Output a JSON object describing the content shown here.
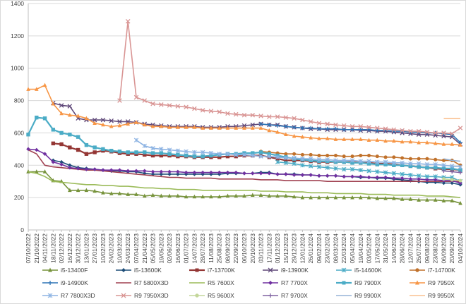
{
  "chart_data": {
    "type": "line",
    "title": "",
    "xlabel": "",
    "ylabel": "",
    "ylim": [
      0,
      1400
    ],
    "yticks": [
      0,
      200,
      400,
      600,
      800,
      1000,
      1200,
      1400
    ],
    "grid": "horizontal",
    "legend_position": "bottom",
    "x_labels": [
      "07/10/2022",
      "21/10/2022",
      "04/11/2022",
      "18/11/2022",
      "02/12/2022",
      "16/12/2022",
      "30/12/2022",
      "13/01/2023",
      "27/01/2023",
      "10/02/2023",
      "24/02/2023",
      "10/03/2023",
      "24/03/2023",
      "07/04/2023",
      "21/04/2023",
      "05/05/2023",
      "19/05/2023",
      "02/06/2023",
      "16/06/2023",
      "01/07/2023",
      "14/07/2023",
      "28/07/2023",
      "11/08/2023",
      "25/08/2023",
      "08/09/2023",
      "22/09/2023",
      "06/10/2023",
      "20/10/2023",
      "03/11/2023",
      "17/11/2023",
      "01/12/2023",
      "15/12/2023",
      "29/12/2023",
      "12/01/2024",
      "26/01/2024",
      "09/02/2024",
      "23/02/2024",
      "08/03/2024",
      "22/03/2024",
      "05/04/2024",
      "19/04/2024",
      "03/05/2024",
      "17/05/2024",
      "31/05/2024",
      "14/06/2024",
      "28/06/2024",
      "12/07/2024",
      "26/07/2024",
      "09/08/2024",
      "23/08/2024",
      "06/09/2024",
      "20/09/2024",
      "04/10/2024"
    ],
    "series": [
      {
        "name": "i5-13400F",
        "color": "#77933C",
        "marker": "triangle",
        "values": [
          360,
          360,
          360,
          305,
          300,
          245,
          245,
          245,
          240,
          230,
          225,
          225,
          220,
          220,
          210,
          215,
          210,
          210,
          210,
          205,
          205,
          205,
          205,
          205,
          210,
          210,
          210,
          215,
          215,
          210,
          210,
          210,
          205,
          200,
          200,
          200,
          200,
          200,
          200,
          200,
          200,
          200,
          195,
          195,
          195,
          190,
          190,
          185,
          185,
          185,
          180,
          180,
          165
        ]
      },
      {
        "name": "i5-13600K",
        "color": "#1F4E79",
        "marker": "diamond",
        "values": [
          null,
          null,
          null,
          430,
          420,
          400,
          385,
          380,
          375,
          370,
          365,
          365,
          360,
          360,
          350,
          345,
          345,
          345,
          345,
          345,
          345,
          345,
          345,
          345,
          350,
          350,
          350,
          350,
          355,
          355,
          345,
          345,
          345,
          340,
          340,
          335,
          335,
          335,
          330,
          330,
          325,
          325,
          320,
          320,
          315,
          310,
          305,
          300,
          295,
          295,
          290,
          290,
          280
        ]
      },
      {
        "name": "i7-13700K",
        "color": "#943634",
        "marker": "square",
        "values": [
          null,
          null,
          null,
          535,
          530,
          510,
          495,
          470,
          480,
          490,
          485,
          475,
          470,
          470,
          465,
          460,
          460,
          460,
          455,
          455,
          450,
          450,
          450,
          450,
          455,
          455,
          460,
          460,
          460,
          450,
          440,
          430,
          430,
          430,
          425,
          420,
          420,
          420,
          420,
          420,
          415,
          415,
          410,
          410,
          405,
          400,
          395,
          390,
          385,
          380,
          375,
          375,
          370
        ]
      },
      {
        "name": "i9-13900K",
        "color": "#60497A",
        "marker": "cross",
        "values": [
          null,
          null,
          null,
          785,
          770,
          765,
          690,
          680,
          680,
          680,
          675,
          670,
          670,
          665,
          655,
          650,
          645,
          640,
          640,
          640,
          640,
          635,
          635,
          635,
          640,
          640,
          645,
          650,
          655,
          650,
          650,
          640,
          635,
          630,
          625,
          625,
          620,
          620,
          620,
          620,
          615,
          615,
          610,
          610,
          605,
          600,
          595,
          590,
          590,
          585,
          580,
          575,
          530
        ]
      },
      {
        "name": "i5-14600K",
        "color": "#4BACC6",
        "marker": "asterisk",
        "values": [
          null,
          null,
          null,
          null,
          null,
          null,
          null,
          null,
          null,
          null,
          null,
          null,
          null,
          null,
          null,
          null,
          null,
          null,
          null,
          null,
          null,
          null,
          null,
          null,
          null,
          null,
          null,
          null,
          null,
          null,
          420,
          415,
          410,
          400,
          395,
          390,
          385,
          380,
          375,
          375,
          370,
          365,
          360,
          355,
          350,
          345,
          340,
          335,
          330,
          330,
          325,
          325,
          300
        ]
      },
      {
        "name": "i7-14700K",
        "color": "#C0712B",
        "marker": "circle",
        "values": [
          null,
          null,
          null,
          null,
          null,
          null,
          null,
          null,
          null,
          null,
          null,
          null,
          null,
          null,
          null,
          null,
          null,
          null,
          null,
          null,
          null,
          null,
          null,
          null,
          null,
          null,
          null,
          null,
          485,
          480,
          475,
          470,
          470,
          465,
          465,
          460,
          460,
          460,
          455,
          455,
          460,
          460,
          455,
          450,
          450,
          445,
          440,
          440,
          440,
          435,
          430,
          430,
          400
        ]
      },
      {
        "name": "i9-14900K",
        "color": "#2E75B6",
        "marker": "plus",
        "values": [
          null,
          null,
          null,
          null,
          null,
          null,
          null,
          null,
          null,
          null,
          null,
          null,
          null,
          null,
          null,
          null,
          null,
          null,
          null,
          null,
          null,
          null,
          null,
          null,
          null,
          null,
          null,
          null,
          655,
          650,
          645,
          640,
          635,
          630,
          630,
          625,
          625,
          625,
          620,
          620,
          620,
          620,
          615,
          615,
          610,
          610,
          605,
          605,
          600,
          600,
          595,
          590,
          540
        ]
      },
      {
        "name": "R7 5800X3D",
        "color": "#A04050",
        "marker": "none",
        "values": [
          495,
          470,
          400,
          390,
          385,
          380,
          375,
          370,
          370,
          365,
          360,
          355,
          350,
          345,
          340,
          335,
          330,
          325,
          325,
          320,
          320,
          320,
          320,
          315,
          315,
          315,
          315,
          315,
          310,
          310,
          310,
          305,
          305,
          305,
          305,
          305,
          300,
          300,
          300,
          300,
          300,
          300,
          300,
          300,
          300,
          300,
          300,
          300,
          300,
          300,
          300,
          300,
          300
        ]
      },
      {
        "name": "R5 7600X",
        "color": "#9BBB59",
        "marker": "none",
        "values": [
          360,
          350,
          330,
          300,
          295,
          290,
          285,
          280,
          280,
          275,
          275,
          270,
          270,
          265,
          260,
          260,
          255,
          255,
          250,
          250,
          250,
          245,
          245,
          245,
          245,
          245,
          245,
          245,
          240,
          240,
          240,
          235,
          235,
          235,
          230,
          230,
          230,
          225,
          225,
          225,
          225,
          220,
          220,
          220,
          215,
          215,
          215,
          215,
          210,
          210,
          210,
          205,
          200
        ]
      },
      {
        "name": "R7 7700X",
        "color": "#7030A0",
        "marker": "diamond",
        "values": [
          500,
          495,
          470,
          420,
          405,
          385,
          380,
          375,
          375,
          370,
          370,
          370,
          365,
          365,
          365,
          360,
          360,
          360,
          360,
          355,
          355,
          355,
          355,
          355,
          355,
          355,
          350,
          350,
          350,
          350,
          345,
          345,
          340,
          340,
          340,
          335,
          335,
          335,
          330,
          330,
          330,
          325,
          325,
          325,
          320,
          320,
          315,
          315,
          310,
          310,
          305,
          305,
          290
        ]
      },
      {
        "name": "R9 7900X",
        "color": "#4BACC6",
        "marker": "square",
        "values": [
          590,
          695,
          690,
          620,
          600,
          590,
          575,
          525,
          510,
          500,
          490,
          485,
          480,
          480,
          480,
          475,
          475,
          470,
          465,
          460,
          455,
          455,
          460,
          465,
          470,
          470,
          475,
          475,
          480,
          470,
          460,
          450,
          440,
          435,
          430,
          425,
          425,
          420,
          420,
          415,
          415,
          410,
          405,
          405,
          400,
          400,
          395,
          390,
          385,
          385,
          380,
          380,
          370
        ]
      },
      {
        "name": "R9 7950X",
        "color": "#F79646",
        "marker": "triangle",
        "values": [
          870,
          870,
          895,
          780,
          720,
          710,
          705,
          690,
          660,
          650,
          640,
          645,
          655,
          665,
          650,
          640,
          640,
          635,
          635,
          635,
          635,
          630,
          630,
          630,
          630,
          630,
          630,
          630,
          630,
          615,
          605,
          590,
          580,
          575,
          570,
          565,
          565,
          560,
          560,
          560,
          560,
          555,
          555,
          550,
          550,
          545,
          545,
          540,
          540,
          535,
          530,
          530,
          525
        ]
      },
      {
        "name": "R7 7800X3D",
        "color": "#8EB4E3",
        "marker": "asterisk",
        "values": [
          null,
          null,
          null,
          null,
          null,
          null,
          null,
          null,
          null,
          null,
          null,
          null,
          null,
          555,
          520,
          505,
          500,
          495,
          490,
          485,
          480,
          480,
          475,
          470,
          470,
          465,
          465,
          460,
          455,
          455,
          450,
          445,
          445,
          440,
          440,
          435,
          435,
          430,
          430,
          430,
          425,
          425,
          420,
          420,
          415,
          415,
          410,
          410,
          405,
          405,
          400,
          395,
          390
        ]
      },
      {
        "name": "R9 7950X3D",
        "color": "#D99594",
        "marker": "cross",
        "values": [
          null,
          null,
          null,
          null,
          null,
          null,
          null,
          null,
          null,
          null,
          null,
          800,
          1290,
          820,
          800,
          780,
          775,
          770,
          765,
          760,
          750,
          740,
          735,
          730,
          720,
          715,
          710,
          710,
          705,
          700,
          700,
          695,
          690,
          680,
          670,
          660,
          655,
          650,
          645,
          640,
          640,
          635,
          630,
          625,
          620,
          615,
          610,
          610,
          605,
          600,
          600,
          595,
          630
        ]
      },
      {
        "name": "R5 9600X",
        "color": "#C4D79B",
        "marker": "circle",
        "values": [
          null,
          null,
          null,
          null,
          null,
          null,
          null,
          null,
          null,
          null,
          null,
          null,
          null,
          null,
          null,
          null,
          null,
          null,
          null,
          null,
          null,
          null,
          null,
          null,
          null,
          null,
          null,
          null,
          null,
          null,
          null,
          null,
          null,
          null,
          null,
          null,
          null,
          null,
          null,
          null,
          null,
          null,
          null,
          null,
          null,
          null,
          null,
          null,
          null,
          null,
          315,
          310,
          305
        ]
      },
      {
        "name": "R7 9700X",
        "color": "#8064A2",
        "marker": "plus",
        "values": [
          null,
          null,
          null,
          null,
          null,
          null,
          null,
          null,
          null,
          null,
          null,
          null,
          null,
          null,
          null,
          null,
          null,
          null,
          null,
          null,
          null,
          null,
          null,
          null,
          null,
          null,
          null,
          null,
          null,
          null,
          null,
          null,
          null,
          null,
          null,
          null,
          null,
          null,
          null,
          null,
          null,
          null,
          null,
          null,
          null,
          null,
          null,
          null,
          null,
          null,
          365,
          360,
          355
        ]
      },
      {
        "name": "R9 9900X",
        "color": "#95B3D7",
        "marker": "none",
        "values": [
          null,
          null,
          null,
          null,
          null,
          null,
          null,
          null,
          null,
          null,
          null,
          null,
          null,
          null,
          null,
          null,
          null,
          null,
          null,
          null,
          null,
          null,
          null,
          null,
          null,
          null,
          null,
          null,
          null,
          null,
          null,
          null,
          null,
          null,
          null,
          null,
          null,
          null,
          null,
          null,
          null,
          null,
          null,
          null,
          null,
          null,
          null,
          null,
          null,
          null,
          440,
          430,
          425
        ]
      },
      {
        "name": "R9 9950X",
        "color": "#FAC090",
        "marker": "none",
        "values": [
          null,
          null,
          null,
          null,
          null,
          null,
          null,
          null,
          null,
          null,
          null,
          null,
          null,
          null,
          null,
          null,
          null,
          null,
          null,
          null,
          null,
          null,
          null,
          null,
          null,
          null,
          null,
          null,
          null,
          null,
          null,
          null,
          null,
          null,
          null,
          null,
          null,
          null,
          null,
          null,
          null,
          null,
          null,
          null,
          null,
          null,
          null,
          null,
          null,
          null,
          690,
          690,
          690
        ]
      }
    ]
  }
}
